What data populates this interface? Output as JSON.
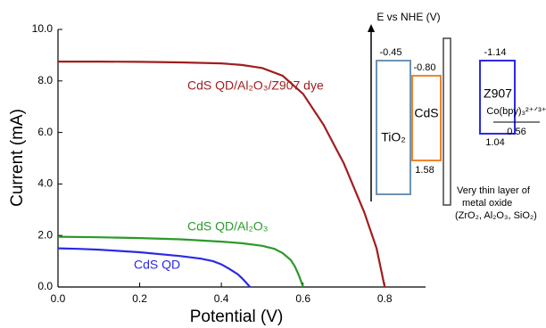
{
  "chart_data": {
    "type": "line",
    "xlabel": "Potential (V)",
    "ylabel": "Current (mA)",
    "xlim": [
      0,
      0.9
    ],
    "ylim": [
      0,
      10
    ],
    "xticks": [
      {
        "value": 0,
        "label": "0.0"
      },
      0.2,
      0.4,
      0.6,
      0.8
    ],
    "yticks": [
      {
        "value": 0,
        "label": "0.0"
      },
      {
        "value": 2,
        "label": "2.0"
      },
      {
        "value": 4,
        "label": "4.0"
      },
      {
        "value": 6,
        "label": "6.0"
      },
      {
        "value": 8,
        "label": "8.0"
      },
      {
        "value": 10,
        "label": "10.0"
      }
    ],
    "series": [
      {
        "name": "CdS QD/Al₂O₃/Z907 dye",
        "color": "#a01e1e",
        "x": [
          0,
          0.1,
          0.2,
          0.3,
          0.4,
          0.45,
          0.5,
          0.55,
          0.6,
          0.65,
          0.7,
          0.75,
          0.78,
          0.8
        ],
        "values": [
          8.75,
          8.75,
          8.74,
          8.72,
          8.68,
          8.62,
          8.5,
          8.2,
          7.5,
          6.3,
          4.8,
          2.9,
          1.5,
          0
        ]
      },
      {
        "name": "CdS QD/Al₂O₃",
        "color": "#2a9a2a",
        "x": [
          0,
          0.1,
          0.2,
          0.3,
          0.4,
          0.45,
          0.5,
          0.53,
          0.55,
          0.57,
          0.58,
          0.59,
          0.6
        ],
        "values": [
          1.95,
          1.93,
          1.9,
          1.85,
          1.76,
          1.7,
          1.6,
          1.48,
          1.32,
          1.05,
          0.8,
          0.45,
          0
        ]
      },
      {
        "name": "CdS QD",
        "color": "#2a2ae6",
        "x": [
          0,
          0.05,
          0.1,
          0.2,
          0.3,
          0.35,
          0.38,
          0.4,
          0.42,
          0.44,
          0.45,
          0.46,
          0.47
        ],
        "values": [
          1.5,
          1.48,
          1.45,
          1.35,
          1.2,
          1.1,
          1.0,
          0.88,
          0.7,
          0.5,
          0.35,
          0.18,
          0
        ]
      }
    ],
    "inset": {
      "axis_label": "E vs NHE (V)",
      "labels": [
        "-0.45",
        "-0.80",
        "-1.14",
        "1.58",
        "1.04",
        "0.56",
        "TiO₂",
        "CdS",
        "Z907",
        "Co(bpy)₃²⁺ᐟ³⁺",
        "Very thin layer of",
        "metal oxide",
        "(ZrO₂, Al₂O₃, SiO₂)"
      ]
    }
  }
}
